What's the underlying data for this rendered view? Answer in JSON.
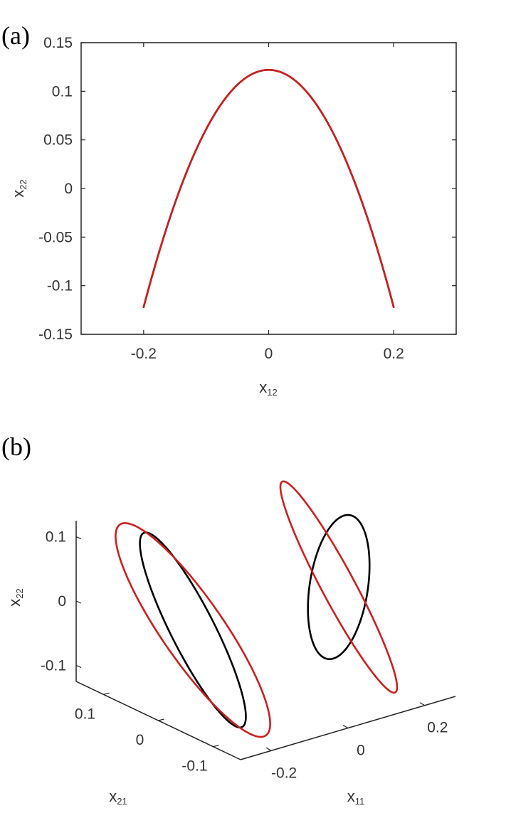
{
  "chart_data": [
    {
      "panel_label": "(a)",
      "type": "line",
      "xlabel": {
        "base": "x",
        "sub": "12"
      },
      "ylabel": {
        "base": "x",
        "sub": "22"
      },
      "xlim": [
        -0.3,
        0.3
      ],
      "ylim": [
        -0.15,
        0.15
      ],
      "xticks": [
        -0.2,
        0,
        0.2
      ],
      "xtick_labels": [
        "-0.2",
        "0",
        "0.2"
      ],
      "yticks": [
        -0.15,
        -0.1,
        -0.05,
        0,
        0.05,
        0.1,
        0.15
      ],
      "ytick_labels": [
        "-0.15",
        "-0.1",
        "-0.05",
        "0",
        "0.05",
        "0.1",
        "0.15"
      ],
      "grid": false,
      "series": [
        {
          "color": "#000000",
          "amp_x": 0.2,
          "amp_y": 0.122,
          "freq_ratio": "1:2",
          "phase_deg": 0,
          "sign_x": 1
        },
        {
          "color": "#cc1f1f",
          "amp_x": 0.2,
          "amp_y": 0.122,
          "freq_ratio": "1:2",
          "phase_deg": 0,
          "sign_x": -1
        }
      ]
    },
    {
      "panel_label": "(b)",
      "type": "line3d",
      "xlabel": {
        "base": "x",
        "sub": "11"
      },
      "ylabel": {
        "base": "x",
        "sub": "21"
      },
      "zlabel": {
        "base": "x",
        "sub": "22"
      },
      "xlim": [
        -0.28,
        0.28
      ],
      "ylim": [
        -0.15,
        0.15
      ],
      "zlim": [
        -0.125,
        0.125
      ],
      "xticks": [
        -0.2,
        0,
        0.2
      ],
      "xtick_labels": [
        "-0.2",
        "0",
        "0.2"
      ],
      "yticks": [
        -0.1,
        0,
        0.1
      ],
      "ytick_labels": [
        "-0.1",
        "0",
        "0.1"
      ],
      "zticks": [
        -0.1,
        0,
        0.1
      ],
      "ztick_labels": [
        "-0.1",
        "0",
        "0.1"
      ],
      "grid": false,
      "series": [
        {
          "color": "#000000",
          "loop_center_x11": -0.19,
          "loop_center_x21": 0.0
        },
        {
          "color": "#000000",
          "loop_center_x11": 0.19,
          "loop_center_x21": 0.0
        },
        {
          "color": "#cc1f1f",
          "loop_center_x11": -0.19,
          "loop_center_x21": 0.0
        },
        {
          "color": "#cc1f1f",
          "loop_center_x11": 0.19,
          "loop_center_x21": 0.0
        }
      ]
    }
  ]
}
